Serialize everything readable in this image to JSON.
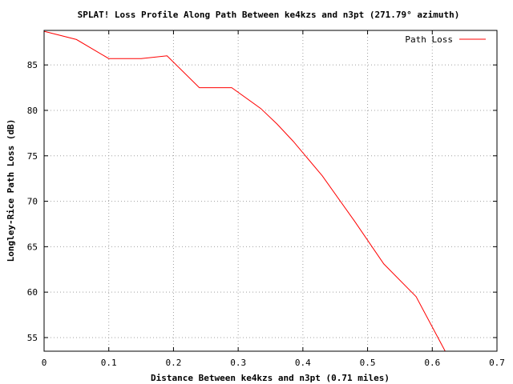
{
  "chart_data": {
    "type": "line",
    "title": "SPLAT! Loss Profile Along Path Between ke4kzs and n3pt (271.79° azimuth)",
    "xlabel": "Distance Between ke4kzs and n3pt (0.71 miles)",
    "ylabel": "Longley-Rice Path Loss (dB)",
    "xlim": [
      0,
      0.7
    ],
    "ylim": [
      53.5,
      88.8
    ],
    "xticks": [
      "0",
      "0.1",
      "0.2",
      "0.3",
      "0.4",
      "0.5",
      "0.6",
      "0.7"
    ],
    "yticks": [
      "55",
      "60",
      "65",
      "70",
      "75",
      "80",
      "85"
    ],
    "grid": true,
    "legend_position": "top-right",
    "series": [
      {
        "name": "Path Loss",
        "color": "#ff0000",
        "x": [
          0,
          0.05,
          0.1,
          0.15,
          0.19,
          0.24,
          0.29,
          0.335,
          0.36,
          0.385,
          0.43,
          0.48,
          0.525,
          0.575,
          0.62
        ],
        "y": [
          88.7,
          87.8,
          85.7,
          85.7,
          86.0,
          82.5,
          82.5,
          80.2,
          78.5,
          76.6,
          72.8,
          67.8,
          63.1,
          59.5,
          53.5
        ]
      }
    ]
  }
}
